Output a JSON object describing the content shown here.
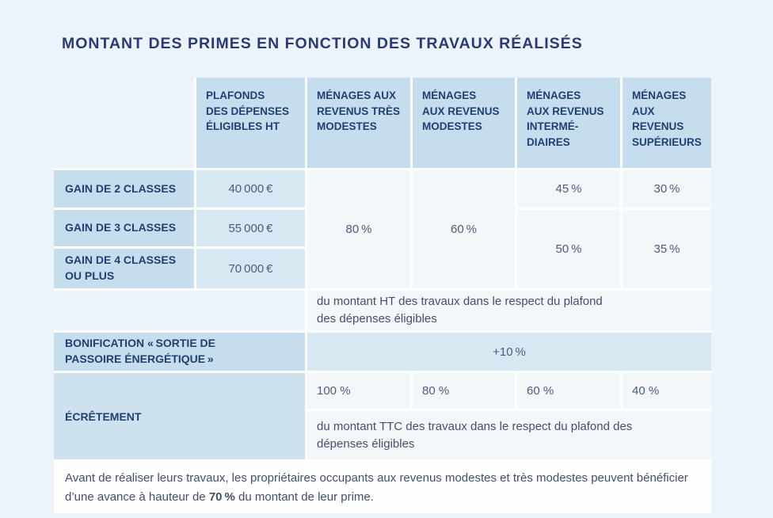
{
  "page": {
    "title": "MONTANT DES PRIMES EN FONCTION DES TRAVAUX RÉALISÉS",
    "background_color": "#edf3fa"
  },
  "colors": {
    "title_text": "#2b3a74",
    "header_cell_bg": "#c5ddec",
    "navy_text": "#223f73",
    "plafond_cell_bg": "#d8e8f3",
    "light_cell_bg": "#f4f7fa",
    "ecretement_label_bg": "#cde1ef",
    "footer_bg": "#fdfdfe",
    "body_text": "#454f6b",
    "value_text": "#4c5b7d",
    "cell_gap": "#ffffff"
  },
  "table": {
    "column_headers": [
      "PLAFONDS\nDES DÉPENSES\nÉLIGIBLES HT",
      "MÉNAGES AUX\nREVENUS TRÈS\nMODESTES",
      "MÉNAGES\nAUX REVENUS\nMODESTES",
      "MÉNAGES\nAUX REVENUS\nINTERMÉ-\nDIAIRES",
      "MÉNAGES\nAUX\nREVENUS\nSUPÉRIEURS"
    ],
    "gain_rows": [
      {
        "label": "GAIN DE 2 CLASSES",
        "plafond": "40 000 €"
      },
      {
        "label": "GAIN DE 3 CLASSES",
        "plafond": "55 000 €"
      },
      {
        "label": "GAIN DE 4 CLASSES\nOU PLUS",
        "plafond": "70 000 €"
      }
    ],
    "rates": {
      "tres_modestes": "80 %",
      "modestes": "60 %",
      "intermediaires_gain2": "45 %",
      "superieurs_gain2": "30 %",
      "intermediaires_gain34": "50 %",
      "superieurs_gain34": "35 %"
    },
    "ht_note": "du montant HT des travaux dans le respect du plafond\ndes dépenses éligibles",
    "bonification": {
      "label": "BONIFICATION « SORTIE DE\nPASSOIRE ÉNERGÉTIQUE »",
      "value": "+10 %"
    },
    "ecretement": {
      "label": "ÉCRÊTEMENT",
      "rates": [
        "100 %",
        "80 %",
        "60 %",
        "40 %"
      ],
      "note": "du montant TTC des travaux dans le respect du plafond des\ndépenses éligibles"
    },
    "footer": {
      "text_before": "Avant de réaliser leurs travaux, les propriétaires occupants aux revenus modestes et très modestes peuvent bénéficier d’une avance à hauteur de ",
      "bold_value": "70 %",
      "text_after": " du montant de leur prime."
    }
  }
}
